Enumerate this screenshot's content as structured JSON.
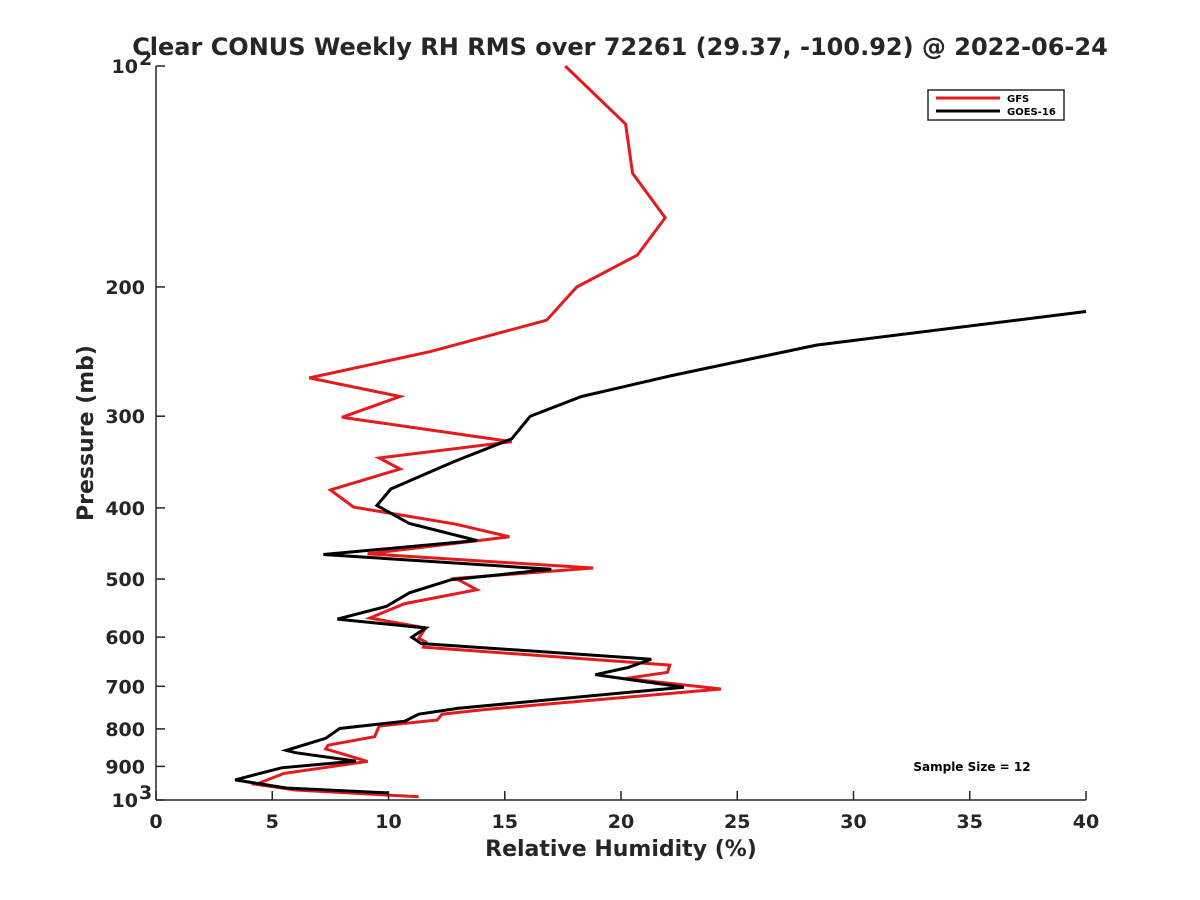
{
  "chart_data": {
    "type": "line",
    "title": "Clear CONUS Weekly RH RMS over 72261 (29.37, -100.92) @ 2022-06-24",
    "xlabel": "Relative Humidity (%)",
    "ylabel": "Pressure (mb)",
    "xlim": [
      0,
      40
    ],
    "ylim": [
      100,
      1000
    ],
    "y_scale": "log",
    "y_reversed": true,
    "x_ticks": [
      "0",
      "5",
      "10",
      "15",
      "20",
      "25",
      "30",
      "35",
      "40"
    ],
    "y_ticks": [
      {
        "value": 100,
        "label": "10",
        "sup": "2"
      },
      {
        "value": 200,
        "label": "200",
        "sup": ""
      },
      {
        "value": 300,
        "label": "300",
        "sup": ""
      },
      {
        "value": 400,
        "label": "400",
        "sup": ""
      },
      {
        "value": 500,
        "label": "500",
        "sup": ""
      },
      {
        "value": 600,
        "label": "600",
        "sup": ""
      },
      {
        "value": 700,
        "label": "700",
        "sup": ""
      },
      {
        "value": 800,
        "label": "800",
        "sup": ""
      },
      {
        "value": 900,
        "label": "900",
        "sup": ""
      },
      {
        "value": 1000,
        "label": "10",
        "sup": "3"
      }
    ],
    "grid": false,
    "legend_position": "top-right",
    "annotation": "Sample Size = 12",
    "series": [
      {
        "name": "GFS",
        "color": "#e41a1c",
        "points": [
          [
            17.6,
            100
          ],
          [
            20.2,
            120
          ],
          [
            20.5,
            140
          ],
          [
            21.9,
            161
          ],
          [
            20.7,
            181
          ],
          [
            18.1,
            200
          ],
          [
            16.8,
            222
          ],
          [
            11.8,
            245
          ],
          [
            6.6,
            266
          ],
          [
            10.5,
            282
          ],
          [
            8.0,
            301
          ],
          [
            15.3,
            325
          ],
          [
            9.6,
            342
          ],
          [
            10.5,
            354
          ],
          [
            7.5,
            378
          ],
          [
            8.5,
            399
          ],
          [
            12.9,
            421
          ],
          [
            15.2,
            438
          ],
          [
            9.1,
            462
          ],
          [
            18.8,
            483
          ],
          [
            12.9,
            499
          ],
          [
            13.8,
            517
          ],
          [
            10.7,
            540
          ],
          [
            9.2,
            565
          ],
          [
            11.6,
            583
          ],
          [
            11.3,
            602
          ],
          [
            11.6,
            609
          ],
          [
            11.5,
            619
          ],
          [
            22.1,
            655
          ],
          [
            22.0,
            670
          ],
          [
            20.2,
            683
          ],
          [
            24.3,
            706
          ],
          [
            14.1,
            753
          ],
          [
            12.3,
            764
          ],
          [
            12.1,
            778
          ],
          [
            9.6,
            793
          ],
          [
            9.4,
            820
          ],
          [
            7.4,
            842
          ],
          [
            7.3,
            852
          ],
          [
            9.1,
            886
          ],
          [
            5.5,
            920
          ],
          [
            4.3,
            952
          ],
          [
            6.0,
            969
          ],
          [
            11.3,
            990
          ]
        ]
      },
      {
        "name": "GOES-16",
        "color": "#000000",
        "points": [
          [
            40.0,
            216
          ],
          [
            28.4,
            240
          ],
          [
            22.2,
            264
          ],
          [
            18.3,
            282
          ],
          [
            16.1,
            300
          ],
          [
            15.3,
            322
          ],
          [
            12.8,
            346
          ],
          [
            10.1,
            377
          ],
          [
            9.5,
            397
          ],
          [
            10.9,
            420
          ],
          [
            13.8,
            443
          ],
          [
            7.2,
            463
          ],
          [
            17.0,
            485
          ],
          [
            12.7,
            501
          ],
          [
            10.9,
            522
          ],
          [
            9.9,
            545
          ],
          [
            7.8,
            567
          ],
          [
            11.6,
            583
          ],
          [
            11.0,
            600
          ],
          [
            11.4,
            612
          ],
          [
            21.3,
            643
          ],
          [
            20.3,
            660
          ],
          [
            18.9,
            675
          ],
          [
            22.7,
            702
          ],
          [
            13.0,
            750
          ],
          [
            11.3,
            764
          ],
          [
            10.7,
            781
          ],
          [
            7.9,
            799
          ],
          [
            7.3,
            824
          ],
          [
            5.6,
            856
          ],
          [
            6.0,
            862
          ],
          [
            8.6,
            885
          ],
          [
            5.4,
            904
          ],
          [
            3.4,
            939
          ],
          [
            5.6,
            963
          ],
          [
            10.0,
            978
          ]
        ]
      }
    ]
  }
}
